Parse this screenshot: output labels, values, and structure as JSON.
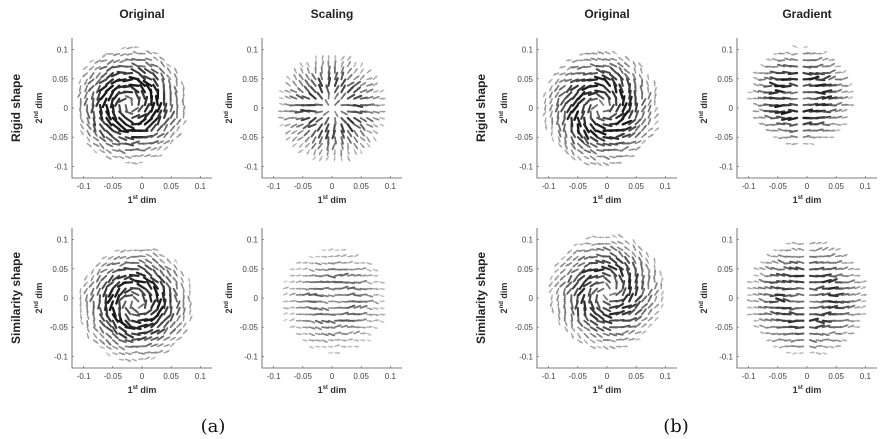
{
  "figure": {
    "captions": [
      "(a)",
      "(b)"
    ],
    "axis_label_text": "dim",
    "x_label_sup": "st",
    "y_label_sup": "nd",
    "x_label_prefix": "1",
    "y_label_prefix": "2"
  },
  "chart_data": [
    {
      "type": "quiver",
      "group": "(a)",
      "row": "Rigid shape",
      "column": "Original",
      "title": "Original",
      "xlabel": "1st dim",
      "ylabel": "2nd dim",
      "xlim": [
        -0.12,
        0.12
      ],
      "ylim": [
        -0.12,
        0.12
      ],
      "xticks": [
        "-0.1",
        "-0.05",
        "0",
        "0.05",
        "0.1"
      ],
      "yticks": [
        "0.1",
        "0.05",
        "0",
        "-0.05",
        "-0.1"
      ],
      "field": {
        "pattern": "vortex",
        "center": [
          -0.02,
          0.005
        ],
        "extent": 0.1,
        "strength": 1.0
      }
    },
    {
      "type": "quiver",
      "group": "(a)",
      "row": "Rigid shape",
      "column": "Scaling",
      "title": "Scaling",
      "xlabel": "1st dim",
      "ylabel": "2nd dim",
      "xlim": [
        -0.12,
        0.12
      ],
      "ylim": [
        -0.12,
        0.12
      ],
      "xticks": [
        "-0.1",
        "-0.05",
        "0",
        "0.05",
        "0.1"
      ],
      "yticks": [
        "0.1",
        "0.05",
        "0",
        "-0.05",
        "-0.1"
      ],
      "field": {
        "pattern": "radial",
        "center": [
          0.0,
          0.0
        ],
        "extent": 0.09,
        "strength": 0.75
      }
    },
    {
      "type": "quiver",
      "group": "(b)",
      "row": "Rigid shape",
      "column": "Original",
      "title": "Original",
      "xlabel": "1st dim",
      "ylabel": "2nd dim",
      "xlim": [
        -0.12,
        0.12
      ],
      "ylim": [
        -0.12,
        0.12
      ],
      "xticks": [
        "-0.1",
        "-0.05",
        "0",
        "0.05",
        "0.1"
      ],
      "yticks": [
        "0.1",
        "0.05",
        "0",
        "-0.05",
        "-0.1"
      ],
      "field": {
        "pattern": "swirl",
        "center": [
          -0.01,
          0.0
        ],
        "extent": 0.1,
        "strength": 0.95
      }
    },
    {
      "type": "quiver",
      "group": "(b)",
      "row": "Rigid shape",
      "column": "Gradient",
      "title": "Gradient",
      "xlabel": "1st dim",
      "ylabel": "2nd dim",
      "xlim": [
        -0.12,
        0.12
      ],
      "ylim": [
        -0.12,
        0.12
      ],
      "xticks": [
        "-0.1",
        "-0.05",
        "0",
        "0.05",
        "0.1"
      ],
      "yticks": [
        "0.1",
        "0.05",
        "0",
        "-0.05",
        "-0.1"
      ],
      "field": {
        "pattern": "dipole",
        "center": [
          -0.01,
          0.02
        ],
        "extent": 0.085,
        "strength": 0.9
      }
    },
    {
      "type": "quiver",
      "group": "(a)",
      "row": "Similarity shape",
      "column": "Original",
      "title": "",
      "xlabel": "1st dim",
      "ylabel": "2nd dim",
      "xlim": [
        -0.12,
        0.12
      ],
      "ylim": [
        -0.12,
        0.12
      ],
      "xticks": [
        "-0.1",
        "-0.05",
        "0",
        "0.05",
        "0.1"
      ],
      "yticks": [
        "0.1",
        "0.05",
        "0",
        "-0.05",
        "-0.1"
      ],
      "field": {
        "pattern": "vortex",
        "center": [
          -0.01,
          -0.01
        ],
        "extent": 0.1,
        "strength": 0.95
      }
    },
    {
      "type": "quiver",
      "group": "(a)",
      "row": "Similarity shape",
      "column": "Scaling",
      "title": "",
      "xlabel": "1st dim",
      "ylabel": "2nd dim",
      "xlim": [
        -0.12,
        0.12
      ],
      "ylim": [
        -0.12,
        0.12
      ],
      "xticks": [
        "-0.1",
        "-0.05",
        "0",
        "0.05",
        "0.1"
      ],
      "yticks": [
        "0.1",
        "0.05",
        "0",
        "-0.05",
        "-0.1"
      ],
      "field": {
        "pattern": "horizontal",
        "center": [
          0.0,
          -0.005
        ],
        "extent": 0.09,
        "strength": 0.6
      }
    },
    {
      "type": "quiver",
      "group": "(b)",
      "row": "Similarity shape",
      "column": "Original",
      "title": "",
      "xlabel": "1st dim",
      "ylabel": "2nd dim",
      "xlim": [
        -0.12,
        0.12
      ],
      "ylim": [
        -0.12,
        0.12
      ],
      "xticks": [
        "-0.1",
        "-0.05",
        "0",
        "0.05",
        "0.1"
      ],
      "yticks": [
        "0.1",
        "0.05",
        "0",
        "-0.05",
        "-0.1"
      ],
      "field": {
        "pattern": "swirl",
        "center": [
          0.0,
          0.01
        ],
        "extent": 0.1,
        "strength": 0.85
      }
    },
    {
      "type": "quiver",
      "group": "(b)",
      "row": "Similarity shape",
      "column": "Gradient",
      "title": "",
      "xlabel": "1st dim",
      "ylabel": "2nd dim",
      "xlim": [
        -0.12,
        0.12
      ],
      "ylim": [
        -0.12,
        0.12
      ],
      "xticks": [
        "-0.1",
        "-0.05",
        "0",
        "0.05",
        "0.1"
      ],
      "yticks": [
        "0.1",
        "0.05",
        "0",
        "-0.05",
        "-0.1"
      ],
      "field": {
        "pattern": "dipole",
        "center": [
          0.0,
          0.0
        ],
        "extent": 0.1,
        "strength": 0.8
      }
    }
  ]
}
